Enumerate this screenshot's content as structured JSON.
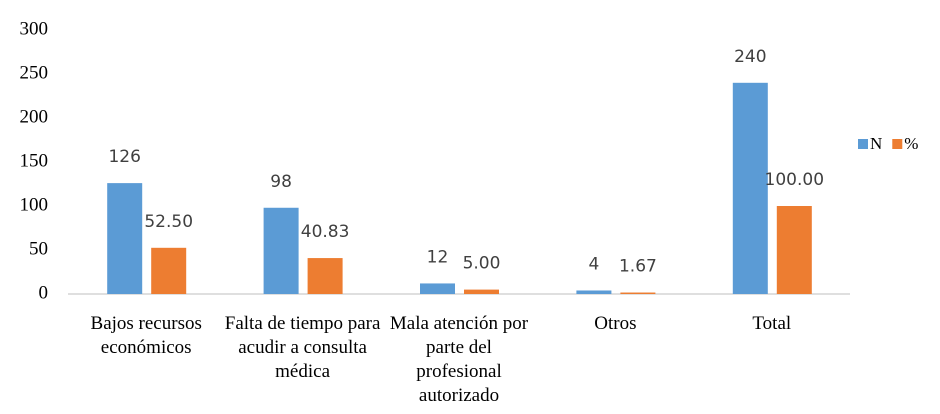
{
  "chart_data": {
    "type": "bar",
    "categories": [
      "Bajos recursos económicos",
      "Falta de tiempo para acudir a consulta médica",
      "Mala atención por parte del profesional autorizado",
      "Otros",
      "Total"
    ],
    "series": [
      {
        "name": "N",
        "color": "#5b9bd5",
        "values": [
          126,
          98,
          12,
          4,
          240
        ]
      },
      {
        "name": "%",
        "color": "#ed7d31",
        "values": [
          52.5,
          40.83,
          5,
          1.67,
          100
        ],
        "value_labels": [
          "52.50",
          "40.83",
          "5.00",
          "1.67",
          "100.00"
        ]
      }
    ],
    "ylim": [
      0,
      300
    ],
    "yticks": [
      0,
      50,
      100,
      150,
      200,
      250,
      300
    ],
    "grid": false,
    "legend": "right"
  }
}
